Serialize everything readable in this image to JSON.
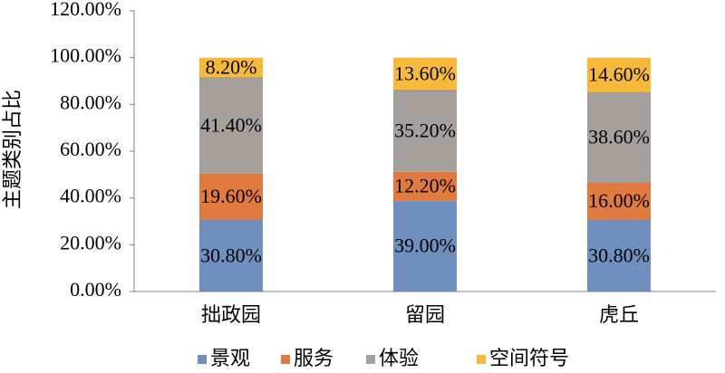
{
  "chart_data": {
    "type": "stacked_bar",
    "y_label": "主题类别占比",
    "categories": [
      "拙政园",
      "留园",
      "虎丘"
    ],
    "series": [
      {
        "name": "景观",
        "color": "#6f8fbe",
        "values": [
          30.8,
          39.0,
          30.8
        ],
        "value_labels": [
          "30.80%",
          "39.00%",
          "30.80%"
        ]
      },
      {
        "name": "服务",
        "color": "#e07a3e",
        "values": [
          19.6,
          12.2,
          16.0
        ],
        "value_labels": [
          "19.60%",
          "12.20%",
          "16.00%"
        ]
      },
      {
        "name": "体验",
        "color": "#a5a09b",
        "values": [
          41.4,
          35.2,
          38.6
        ],
        "value_labels": [
          "41.40%",
          "35.20%",
          "38.60%"
        ]
      },
      {
        "name": "空间符号",
        "color": "#f7b93a",
        "values": [
          8.2,
          13.6,
          14.6
        ],
        "value_labels": [
          "8.20%",
          "13.60%",
          "14.60%"
        ]
      }
    ],
    "ylim": [
      0,
      120
    ],
    "yticks": [
      {
        "value": 0,
        "label": "0.00%"
      },
      {
        "value": 20,
        "label": "20.00%"
      },
      {
        "value": 40,
        "label": "40.00%"
      },
      {
        "value": 60,
        "label": "60.00%"
      },
      {
        "value": 80,
        "label": "80.00%"
      },
      {
        "value": 100,
        "label": "100.00%"
      },
      {
        "value": 120,
        "label": "120.00%"
      }
    ],
    "grid": false,
    "legend": "bottom"
  }
}
